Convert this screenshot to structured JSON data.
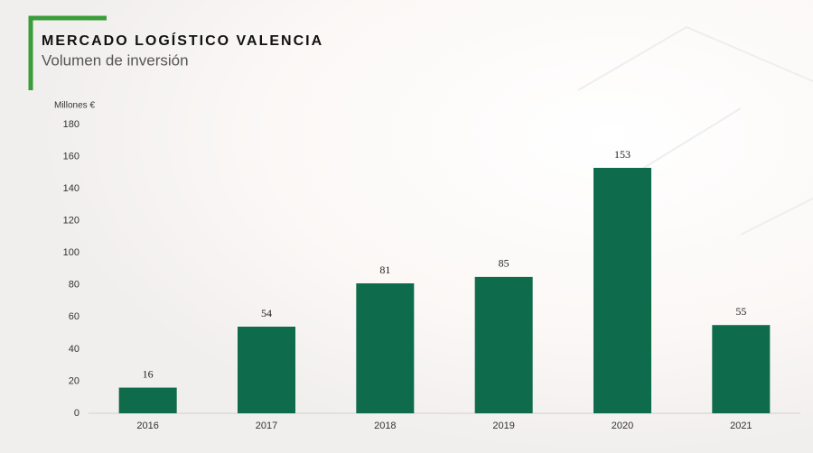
{
  "chart_data": {
    "type": "bar",
    "title": "MERCADO LOGÍSTICO VALENCIA",
    "subtitle": "Volumen de inversión",
    "y_label": "Millones €",
    "categories": [
      "2016",
      "2017",
      "2018",
      "2019",
      "2020",
      "2021"
    ],
    "values": [
      16,
      54,
      81,
      85,
      153,
      55
    ],
    "color": "#0e6b4c",
    "ylim": [
      0,
      180
    ],
    "yticks": [
      0,
      20,
      40,
      60,
      80,
      100,
      120,
      140,
      160,
      180
    ],
    "grid": false
  }
}
